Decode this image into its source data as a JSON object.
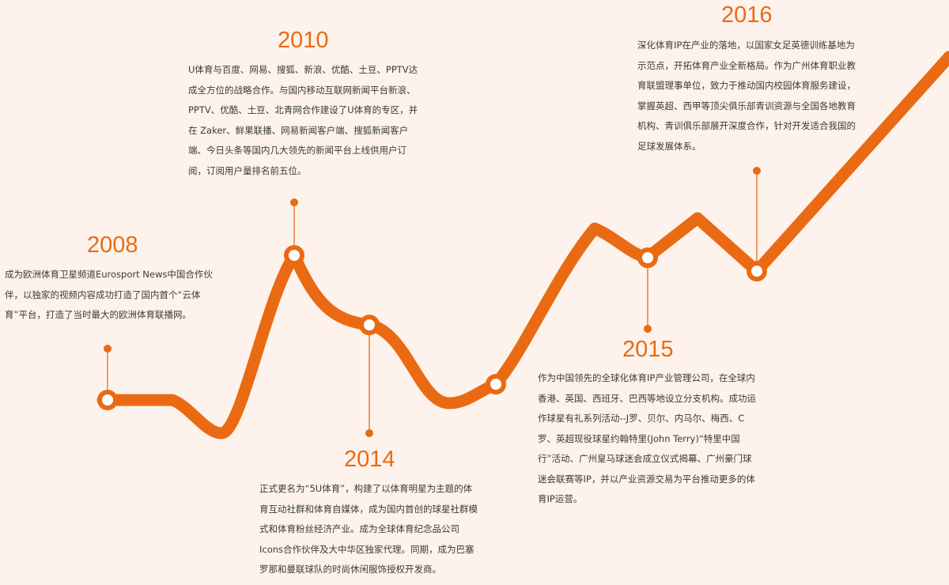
{
  "colors": {
    "background": "#fdf3ec",
    "line": "#ea6a14",
    "text": "#3a3a3a"
  },
  "milestones": [
    {
      "year": "2008",
      "text": "成为欧洲体育卫星频道Eurosport News中国合作伙伴，以独家的视频内容成功打造了国内首个“云体育”平台，打造了当时最大的欧洲体育联播网。"
    },
    {
      "year": "2010",
      "text": "U体育与百度、网易、搜狐、新浪、优酷、土豆、PPTV达成全方位的战略合作。与国内移动互联网新闻平台新浪、PPTV、优酷、土豆、北青网合作建设了U体育的专区，并在 Zaker、鲜果联播、网易新闻客户端、搜狐新闻客户端、今日头条等国内几大领先的新闻平台上线供用户订阅，订阅用户量排名前五位。"
    },
    {
      "year": "2014",
      "text": "正式更名为“5U体育”，构建了以体育明星为主题的体育互动社群和体育自媒体，成为国内首创的球星社群模式和体育粉丝经济产业。成为全球体育纪念品公司Icons合作伙伴及大中华区独家代理。同期，成为巴塞罗那和曼联球队的时尚休闲服饰授权开发商。"
    },
    {
      "year": "2015",
      "text": "作为中国领先的全球化体育IP产业管理公司，在全球内香港、英国、西班牙、巴西等地设立分支机构。成功运作球星有礼系列活动--J罗、贝尔、内马尔、梅西、C罗、英超现役球星约翰特里(John Terry)“特里中国行”活动、广州皇马球迷会成立仪式揭幕、广州豪门球迷会联赛等IP，并以产业资源交易为平台推动更多的体育IP运营。"
    },
    {
      "year": "2016",
      "text": "深化体育IP在产业的落地，以国家女足英德训练基地为示范点，开拓体育产业全新格局。作为广州体育职业教育联盟理事单位，致力于推动国内校园体育服务建设，掌握英超、西甲等顶尖俱乐部青训资源与全国各地教育机构、青训俱乐部展开深度合作，针对开发适合我国的足球发展体系。"
    }
  ]
}
